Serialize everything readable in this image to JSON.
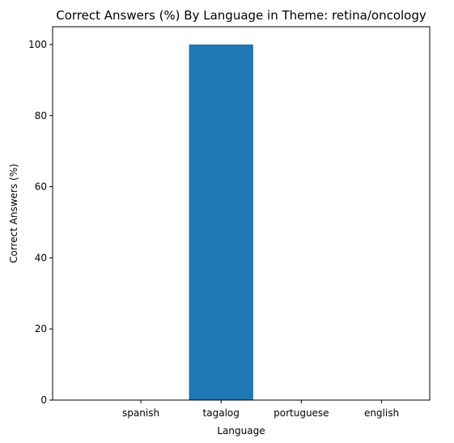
{
  "chart_data": {
    "type": "bar",
    "title": "Correct Answers (%) By Language in Theme: retina/oncology",
    "xlabel": "Language",
    "ylabel": "Correct Answers (%)",
    "categories": [
      "spanish",
      "tagalog",
      "portuguese",
      "english"
    ],
    "values": [
      0,
      100,
      0,
      0
    ],
    "ylim": [
      0,
      105
    ],
    "yticks": [
      0,
      20,
      40,
      60,
      80,
      100
    ],
    "grid": false,
    "bar_color": "#1f77b4"
  }
}
